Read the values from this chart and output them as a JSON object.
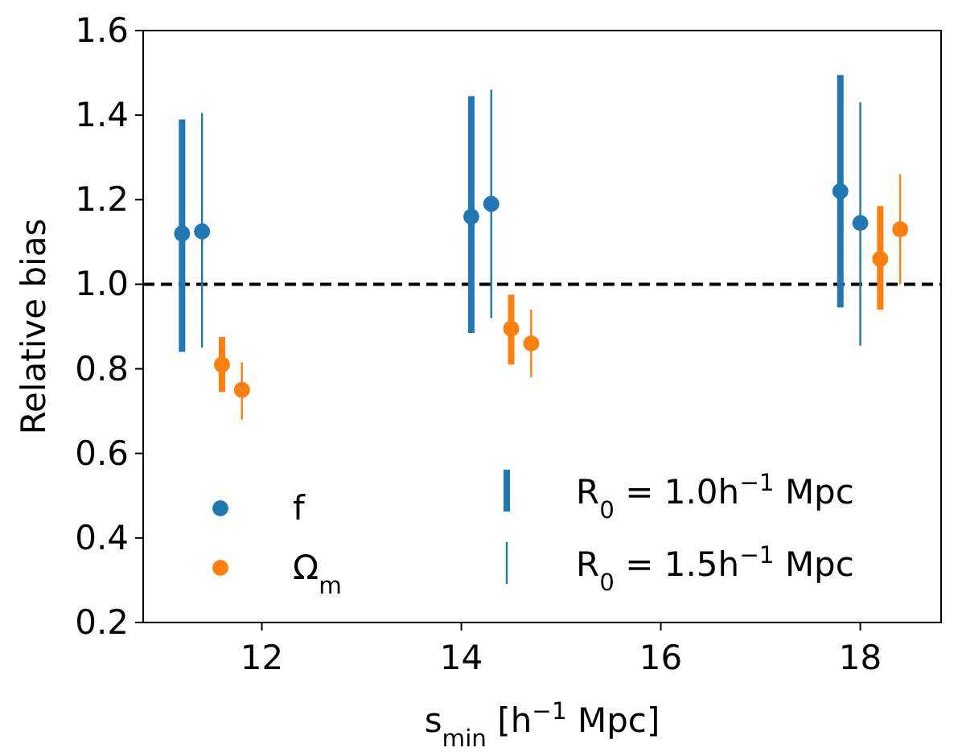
{
  "chart_data": {
    "type": "scatter",
    "xlabel": "s$_{min}$ [h$^{−1}$ Mpc]",
    "ylabel": "Relative bias",
    "xlim": [
      10.81,
      18.81
    ],
    "xticks": [
      12,
      14,
      16,
      18
    ],
    "ylim": [
      0.2,
      1.6
    ],
    "yticks": [
      {
        "value": 0.2,
        "label": "0.2"
      },
      {
        "value": 0.4,
        "label": "0.4"
      },
      {
        "value": 0.6,
        "label": "0.6"
      },
      {
        "value": 0.8,
        "label": "0.8"
      },
      {
        "value": 1.0,
        "label": "1.0"
      },
      {
        "value": 1.2,
        "label": "1.2"
      },
      {
        "value": 1.4,
        "label": "1.4"
      },
      {
        "value": 1.6,
        "label": "1.6"
      }
    ],
    "series": [
      {
        "name": "f",
        "color": "#1f77b4",
        "x": [
          11.2,
          14.1,
          17.8
        ],
        "values": [
          1.12,
          1.16,
          1.22
        ],
        "errors": [
          [
            0.84,
            1.39
          ],
          [
            0.885,
            1.445
          ],
          [
            0.945,
            1.495
          ]
        ]
      },
      {
        "color": "#1f77b4",
        "x": [
          11.4,
          14.3,
          18.0
        ],
        "values": [
          1.125,
          1.19,
          1.145
        ],
        "errors": [
          [
            0.85,
            1.405
          ],
          [
            0.92,
            1.46
          ],
          [
            0.855,
            1.43
          ]
        ]
      },
      {
        "name": "Ω$_{m}$",
        "color": "#ff7f0e",
        "x": [
          11.6,
          14.5,
          18.2
        ],
        "values": [
          0.81,
          0.895,
          1.06
        ],
        "errors": [
          [
            0.745,
            0.875
          ],
          [
            0.81,
            0.975
          ],
          [
            0.94,
            1.185
          ]
        ]
      },
      {
        "color": "#ff7f0e",
        "x": [
          11.8,
          14.7,
          18.4
        ],
        "values": [
          0.75,
          0.86,
          1.13
        ],
        "errors": [
          [
            0.68,
            0.815
          ],
          [
            0.78,
            0.94
          ],
          [
            1.0,
            1.26
          ]
        ]
      }
    ],
    "ref_lines": [
      {
        "axis": "y",
        "value": 1.0,
        "color": "#000000",
        "line_style": "dashed"
      }
    ],
    "annotations": [
      "R$_{0}$ = 1.0h$^{−1}$ Mpc",
      "R$_{0}$ = 1.5h$^{−1}$ Mpc"
    ],
    "marker": "circle",
    "legend": "bottom",
    "grid": false
  }
}
